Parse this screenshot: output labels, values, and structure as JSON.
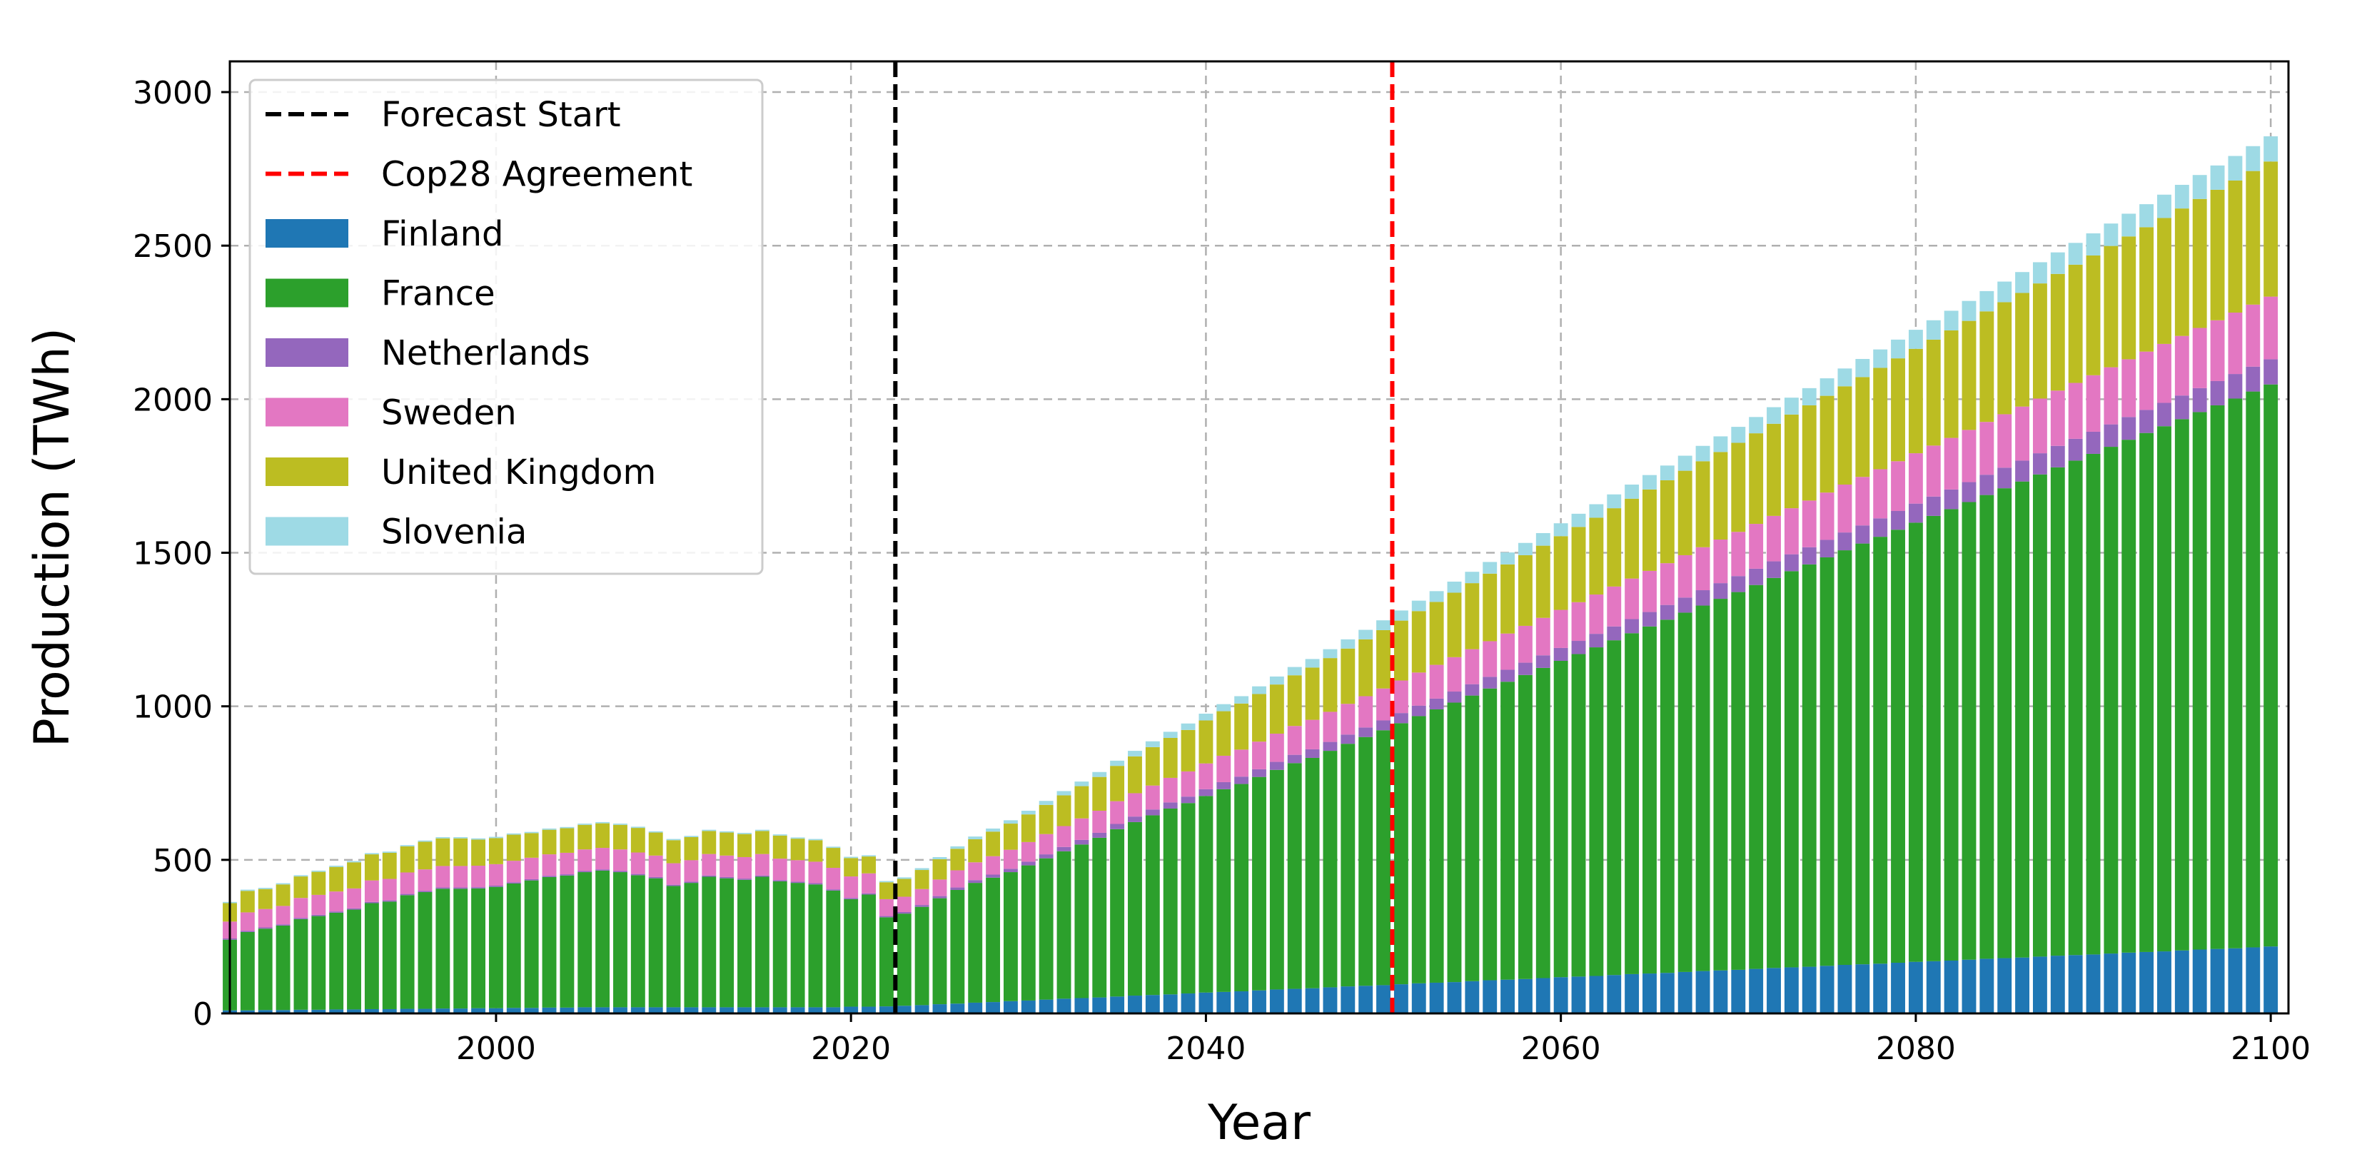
{
  "chart_data": {
    "type": "bar",
    "stacked": true,
    "title": "",
    "xlabel": "Year",
    "ylabel": "Production (TWh)",
    "xlim": [
      1985,
      2101
    ],
    "ylim": [
      0,
      3100
    ],
    "xticks": [
      2000,
      2020,
      2040,
      2060,
      2080,
      2100
    ],
    "yticks": [
      0,
      500,
      1000,
      1500,
      2000,
      2500,
      3000
    ],
    "grid": true,
    "legend_position": "top-left",
    "forecast_start_year": 2022.5,
    "vlines": [
      {
        "name": "Forecast Start",
        "x": 2022.5,
        "color": "#000000"
      },
      {
        "name": "Cop28 Agreement",
        "x": 2050.5,
        "color": "#ff0000"
      }
    ],
    "x_start": 1985,
    "x_end": 2100,
    "series": [
      {
        "name": "Finland",
        "color": "#1f77b4",
        "values": [
          10,
          10,
          11,
          11,
          12,
          12,
          13,
          13,
          14,
          14,
          15,
          15,
          16,
          16,
          17,
          17,
          18,
          18,
          19,
          19,
          20,
          20,
          20,
          20,
          20,
          20,
          20,
          20,
          20,
          20,
          20,
          20,
          20,
          20,
          20,
          22,
          22,
          23,
          25,
          27,
          30,
          32,
          35,
          37,
          40,
          42,
          45,
          48,
          50,
          52,
          55,
          58,
          60,
          62,
          65,
          68,
          70,
          72,
          75,
          78,
          80,
          82,
          85,
          88,
          90,
          92,
          95,
          98,
          100,
          102,
          105,
          108,
          110,
          112,
          115,
          118,
          120,
          122,
          125,
          128,
          130,
          132,
          135,
          138,
          140,
          142,
          145,
          148,
          150,
          152,
          155,
          158,
          160,
          162,
          165,
          168,
          170,
          172,
          175,
          178,
          180,
          182,
          185,
          188,
          190,
          192,
          195,
          198,
          200,
          202,
          205,
          208,
          210,
          212,
          215,
          218
        ]
      },
      {
        "name": "France",
        "color": "#2ca02c",
        "values": [
          230,
          255,
          265,
          275,
          295,
          305,
          315,
          325,
          345,
          350,
          370,
          380,
          390,
          390,
          390,
          395,
          405,
          415,
          425,
          430,
          440,
          445,
          440,
          430,
          420,
          395,
          405,
          425,
          420,
          415,
          425,
          410,
          405,
          400,
          380,
          350,
          365,
          290,
          300,
          320,
          345,
          370,
          390,
          405,
          420,
          440,
          460,
          480,
          500,
          520,
          545,
          565,
          585,
          605,
          620,
          640,
          660,
          675,
          695,
          715,
          735,
          750,
          770,
          790,
          810,
          830,
          850,
          870,
          890,
          910,
          930,
          950,
          970,
          990,
          1010,
          1030,
          1050,
          1070,
          1090,
          1110,
          1130,
          1150,
          1170,
          1190,
          1210,
          1230,
          1250,
          1270,
          1290,
          1310,
          1330,
          1350,
          1370,
          1390,
          1410,
          1430,
          1450,
          1470,
          1490,
          1510,
          1530,
          1550,
          1570,
          1590,
          1610,
          1630,
          1650,
          1670,
          1690,
          1710,
          1730,
          1750,
          1770,
          1790,
          1810,
          1830
        ]
      },
      {
        "name": "Netherlands",
        "color": "#9467bd",
        "values": [
          4,
          4,
          4,
          4,
          4,
          4,
          4,
          4,
          4,
          4,
          4,
          4,
          4,
          4,
          4,
          4,
          4,
          4,
          4,
          4,
          4,
          4,
          4,
          4,
          4,
          4,
          4,
          4,
          4,
          4,
          4,
          4,
          4,
          4,
          4,
          4,
          4,
          4,
          5,
          6,
          7,
          8,
          9,
          10,
          11,
          12,
          13,
          14,
          15,
          16,
          17,
          18,
          19,
          20,
          21,
          22,
          23,
          24,
          25,
          26,
          27,
          28,
          29,
          30,
          31,
          32,
          33,
          34,
          35,
          36,
          37,
          38,
          39,
          40,
          41,
          42,
          43,
          44,
          45,
          46,
          47,
          48,
          49,
          50,
          51,
          52,
          53,
          54,
          55,
          56,
          57,
          58,
          59,
          60,
          61,
          62,
          63,
          64,
          65,
          66,
          67,
          68,
          69,
          70,
          71,
          72,
          73,
          74,
          75,
          76,
          77,
          78,
          79,
          80,
          81,
          82
        ]
      },
      {
        "name": "Sweden",
        "color": "#e377c2",
        "values": [
          55,
          60,
          60,
          60,
          65,
          65,
          65,
          65,
          70,
          70,
          70,
          70,
          70,
          70,
          70,
          70,
          70,
          70,
          70,
          70,
          70,
          70,
          70,
          70,
          70,
          70,
          70,
          70,
          70,
          70,
          70,
          70,
          70,
          70,
          70,
          70,
          65,
          55,
          50,
          52,
          54,
          56,
          58,
          60,
          62,
          64,
          66,
          68,
          70,
          72,
          74,
          76,
          78,
          80,
          82,
          84,
          86,
          88,
          90,
          92,
          94,
          96,
          98,
          100,
          102,
          104,
          106,
          108,
          110,
          112,
          114,
          116,
          118,
          120,
          122,
          124,
          126,
          128,
          130,
          132,
          134,
          136,
          138,
          140,
          142,
          144,
          146,
          148,
          150,
          152,
          154,
          156,
          158,
          160,
          162,
          164,
          166,
          168,
          170,
          172,
          174,
          176,
          178,
          180,
          182,
          184,
          186,
          188,
          190,
          192,
          194,
          196,
          198,
          200,
          202,
          204
        ]
      },
      {
        "name": "United Kingdom",
        "color": "#bcbd22",
        "values": [
          60,
          70,
          65,
          70,
          70,
          75,
          80,
          85,
          85,
          85,
          85,
          90,
          90,
          90,
          85,
          85,
          85,
          80,
          80,
          80,
          80,
          80,
          80,
          80,
          75,
          75,
          75,
          75,
          75,
          75,
          75,
          75,
          70,
          70,
          65,
          60,
          55,
          55,
          58,
          62,
          66,
          70,
          75,
          80,
          85,
          90,
          95,
          100,
          105,
          110,
          115,
          120,
          125,
          130,
          135,
          140,
          145,
          150,
          155,
          160,
          165,
          170,
          175,
          180,
          185,
          190,
          195,
          200,
          205,
          210,
          215,
          220,
          225,
          230,
          235,
          240,
          245,
          250,
          255,
          260,
          265,
          270,
          275,
          280,
          285,
          290,
          295,
          300,
          305,
          310,
          315,
          320,
          325,
          330,
          335,
          340,
          345,
          350,
          355,
          360,
          365,
          370,
          375,
          380,
          385,
          390,
          395,
          400,
          405,
          410,
          415,
          420,
          425,
          430,
          435,
          440
        ]
      },
      {
        "name": "Slovenia",
        "color": "#9edae5",
        "values": [
          4,
          4,
          4,
          4,
          4,
          4,
          4,
          4,
          4,
          4,
          4,
          4,
          4,
          4,
          4,
          4,
          4,
          4,
          4,
          4,
          4,
          4,
          4,
          4,
          4,
          4,
          4,
          4,
          4,
          4,
          4,
          4,
          4,
          4,
          4,
          4,
          4,
          4,
          5,
          6,
          7,
          8,
          9,
          10,
          11,
          12,
          13,
          14,
          15,
          16,
          17,
          18,
          19,
          20,
          21,
          22,
          23,
          24,
          25,
          26,
          27,
          28,
          29,
          30,
          31,
          32,
          33,
          34,
          35,
          36,
          37,
          38,
          39,
          40,
          41,
          42,
          43,
          44,
          45,
          46,
          47,
          48,
          49,
          50,
          51,
          52,
          53,
          54,
          55,
          56,
          57,
          58,
          59,
          60,
          61,
          62,
          63,
          64,
          65,
          66,
          67,
          68,
          69,
          70,
          71,
          72,
          73,
          74,
          75,
          76,
          77,
          78,
          79,
          80,
          81,
          82
        ]
      }
    ]
  },
  "legend": {
    "items": [
      {
        "label": "Forecast Start",
        "kind": "line",
        "color": "#000000"
      },
      {
        "label": "Cop28 Agreement",
        "kind": "line",
        "color": "#ff0000"
      },
      {
        "label": "Finland",
        "kind": "patch",
        "color": "#1f77b4"
      },
      {
        "label": "France",
        "kind": "patch",
        "color": "#2ca02c"
      },
      {
        "label": "Netherlands",
        "kind": "patch",
        "color": "#9467bd"
      },
      {
        "label": "Sweden",
        "kind": "patch",
        "color": "#e377c2"
      },
      {
        "label": "United Kingdom",
        "kind": "patch",
        "color": "#bcbd22"
      },
      {
        "label": "Slovenia",
        "kind": "patch",
        "color": "#9edae5"
      }
    ]
  }
}
